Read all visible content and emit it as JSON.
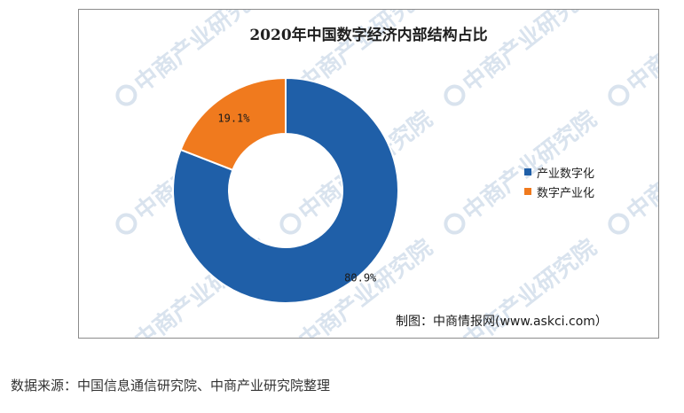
{
  "chart_data": {
    "type": "pie",
    "variant": "donut",
    "title": "2020年中国数字经济内部结构占比",
    "categories": [
      "产业数字化",
      "数字产业化"
    ],
    "values": [
      80.9,
      19.1
    ],
    "data_labels": [
      "80.9%",
      "19.1%"
    ],
    "colors": [
      "#1f5fa8",
      "#f07a1e"
    ],
    "legend_position": "right"
  },
  "watermark": {
    "text": "中商产业研究院",
    "logo_icon": "askci-logo-icon"
  },
  "source_note": "制图：中商情报网(www.askci.com）",
  "footer": "数据来源：中国信息通信研究院、中商产业研究院整理"
}
